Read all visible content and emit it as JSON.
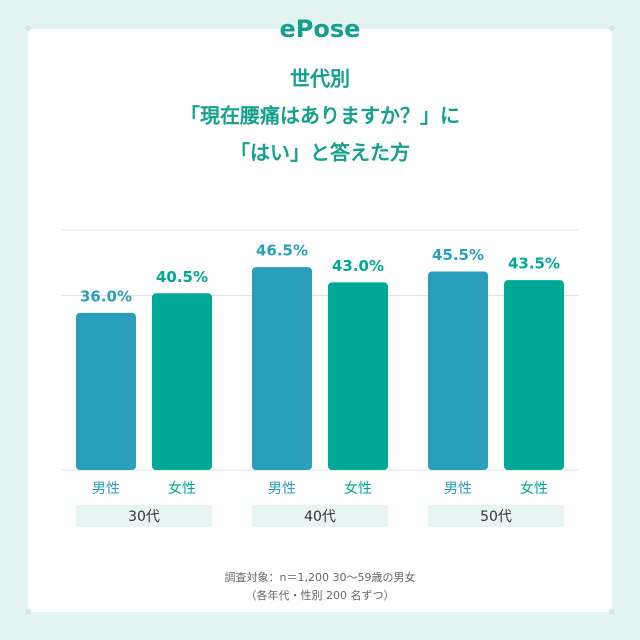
{
  "brand": "ePose",
  "chart_data": {
    "type": "bar",
    "title": [
      "世代別",
      "「現在腰痛はありますか？」に",
      "「はい」と答えた方"
    ],
    "categories": [
      "30代",
      "40代",
      "50代"
    ],
    "series": [
      {
        "name": "男性",
        "color": "#2a9fbb",
        "values": [
          36.0,
          46.5,
          45.5
        ],
        "value_labels": [
          "36.0%",
          "46.5%",
          "45.5%"
        ]
      },
      {
        "name": "女性",
        "color": "#00a895",
        "values": [
          40.5,
          43.0,
          43.5
        ],
        "value_labels": [
          "40.5%",
          "43.0%",
          "43.5%"
        ]
      }
    ],
    "ylim": [
      0,
      55
    ],
    "yticks": [
      0,
      40,
      55
    ],
    "grid": true,
    "notes": [
      "調査対象：n＝1,200 30～59歳の男女",
      "（各年代・性別 200 名ずつ）"
    ]
  }
}
